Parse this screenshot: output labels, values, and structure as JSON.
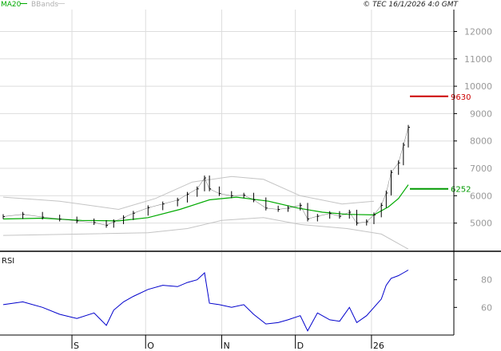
{
  "chart_data": {
    "type": "line",
    "copyright": "© TEC 16/1/2026 4:0 GMT",
    "legend": [
      {
        "name": "MA20",
        "color": "#00aa00"
      },
      {
        "name": "BBands",
        "color": "#bbbbbb"
      }
    ],
    "price_panel": {
      "ylim": [
        4000,
        12800
      ],
      "y_ticks": [
        5000,
        6000,
        7000,
        8000,
        9000,
        10000,
        11000,
        12000
      ],
      "y_tick_labels": [
        "5000",
        "6000",
        "7000",
        "8000",
        "9000",
        "10000",
        "11000",
        "12000"
      ],
      "date_range": [
        "2025-08-04",
        "2026-01-16"
      ],
      "price_series": [
        {
          "date": "2025-08-04",
          "value": 5240
        },
        {
          "date": "2025-08-12",
          "value": 5320
        },
        {
          "date": "2025-08-20",
          "value": 5220
        },
        {
          "date": "2025-08-27",
          "value": 5150
        },
        {
          "date": "2025-09-03",
          "value": 5080
        },
        {
          "date": "2025-09-10",
          "value": 5020
        },
        {
          "date": "2025-09-15",
          "value": 4920
        },
        {
          "date": "2025-09-18",
          "value": 5050
        },
        {
          "date": "2025-09-22",
          "value": 5200
        },
        {
          "date": "2025-09-26",
          "value": 5360
        },
        {
          "date": "2025-10-02",
          "value": 5560
        },
        {
          "date": "2025-10-08",
          "value": 5700
        },
        {
          "date": "2025-10-14",
          "value": 5840
        },
        {
          "date": "2025-10-18",
          "value": 6050
        },
        {
          "date": "2025-10-22",
          "value": 6250
        },
        {
          "date": "2025-10-25",
          "value": 6650
        },
        {
          "date": "2025-10-27",
          "value": 6250
        },
        {
          "date": "2025-10-31",
          "value": 6080
        },
        {
          "date": "2025-11-05",
          "value": 6000
        },
        {
          "date": "2025-11-10",
          "value": 6020
        },
        {
          "date": "2025-11-14",
          "value": 5850
        },
        {
          "date": "2025-11-19",
          "value": 5550
        },
        {
          "date": "2025-11-24",
          "value": 5500
        },
        {
          "date": "2025-11-28",
          "value": 5550
        },
        {
          "date": "2025-12-03",
          "value": 5650
        },
        {
          "date": "2025-12-06",
          "value": 5150
        },
        {
          "date": "2025-12-10",
          "value": 5250
        },
        {
          "date": "2025-12-15",
          "value": 5350
        },
        {
          "date": "2025-12-19",
          "value": 5250
        },
        {
          "date": "2025-12-23",
          "value": 5400
        },
        {
          "date": "2025-12-26",
          "value": 5000
        },
        {
          "date": "2025-12-30",
          "value": 5050
        },
        {
          "date": "2026-01-02",
          "value": 5300
        },
        {
          "date": "2026-01-05",
          "value": 5650
        },
        {
          "date": "2026-01-07",
          "value": 6100
        },
        {
          "date": "2026-01-09",
          "value": 6850
        },
        {
          "date": "2026-01-12",
          "value": 7200
        },
        {
          "date": "2026-01-14",
          "value": 7850
        },
        {
          "date": "2026-01-16",
          "value": 8500
        }
      ],
      "ma20": [
        {
          "date": "2025-08-04",
          "value": 5150
        },
        {
          "date": "2025-08-20",
          "value": 5180
        },
        {
          "date": "2025-09-05",
          "value": 5100
        },
        {
          "date": "2025-09-20",
          "value": 5080
        },
        {
          "date": "2025-10-02",
          "value": 5200
        },
        {
          "date": "2025-10-15",
          "value": 5500
        },
        {
          "date": "2025-10-27",
          "value": 5850
        },
        {
          "date": "2025-11-07",
          "value": 5950
        },
        {
          "date": "2025-11-20",
          "value": 5800
        },
        {
          "date": "2025-12-02",
          "value": 5550
        },
        {
          "date": "2025-12-12",
          "value": 5400
        },
        {
          "date": "2025-12-22",
          "value": 5320
        },
        {
          "date": "2026-01-02",
          "value": 5300
        },
        {
          "date": "2026-01-08",
          "value": 5600
        },
        {
          "date": "2026-01-12",
          "value": 5900
        },
        {
          "date": "2026-01-16",
          "value": 6400
        }
      ],
      "bband_upper": [
        {
          "date": "2025-08-04",
          "value": 5950
        },
        {
          "date": "2025-08-27",
          "value": 5800
        },
        {
          "date": "2025-09-20",
          "value": 5500
        },
        {
          "date": "2025-10-05",
          "value": 5900
        },
        {
          "date": "2025-10-20",
          "value": 6500
        },
        {
          "date": "2025-11-05",
          "value": 6700
        },
        {
          "date": "2025-11-18",
          "value": 6600
        },
        {
          "date": "2025-12-03",
          "value": 6000
        },
        {
          "date": "2025-12-20",
          "value": 5700
        },
        {
          "date": "2026-01-02",
          "value": 5800
        }
      ],
      "bband_lower": [
        {
          "date": "2025-08-04",
          "value": 4550
        },
        {
          "date": "2025-09-05",
          "value": 4600
        },
        {
          "date": "2025-10-02",
          "value": 4650
        },
        {
          "date": "2025-10-18",
          "value": 4800
        },
        {
          "date": "2025-11-01",
          "value": 5100
        },
        {
          "date": "2025-11-18",
          "value": 5200
        },
        {
          "date": "2025-12-03",
          "value": 4950
        },
        {
          "date": "2025-12-22",
          "value": 4800
        },
        {
          "date": "2026-01-05",
          "value": 4600
        },
        {
          "date": "2026-01-16",
          "value": 4050
        }
      ],
      "reference_lines": [
        {
          "label": "9630",
          "value": 9630,
          "color": "#cc0000"
        },
        {
          "label": "6252",
          "value": 6252,
          "color": "#009900"
        }
      ]
    },
    "rsi_panel": {
      "label": "RSI",
      "ylim": [
        40,
        100
      ],
      "y_ticks": [
        60,
        80
      ],
      "y_tick_labels": [
        "60",
        "80"
      ],
      "series": [
        {
          "date": "2025-08-04",
          "value": 62
        },
        {
          "date": "2025-08-12",
          "value": 64
        },
        {
          "date": "2025-08-20",
          "value": 60
        },
        {
          "date": "2025-08-27",
          "value": 55
        },
        {
          "date": "2025-09-03",
          "value": 52
        },
        {
          "date": "2025-09-10",
          "value": 56
        },
        {
          "date": "2025-09-15",
          "value": 47
        },
        {
          "date": "2025-09-18",
          "value": 58
        },
        {
          "date": "2025-09-22",
          "value": 64
        },
        {
          "date": "2025-09-26",
          "value": 68
        },
        {
          "date": "2025-10-02",
          "value": 73
        },
        {
          "date": "2025-10-08",
          "value": 76
        },
        {
          "date": "2025-10-14",
          "value": 75
        },
        {
          "date": "2025-10-18",
          "value": 78
        },
        {
          "date": "2025-10-22",
          "value": 80
        },
        {
          "date": "2025-10-25",
          "value": 85
        },
        {
          "date": "2025-10-27",
          "value": 63
        },
        {
          "date": "2025-10-31",
          "value": 62
        },
        {
          "date": "2025-11-05",
          "value": 60
        },
        {
          "date": "2025-11-10",
          "value": 62
        },
        {
          "date": "2025-11-14",
          "value": 55
        },
        {
          "date": "2025-11-19",
          "value": 48
        },
        {
          "date": "2025-11-24",
          "value": 49
        },
        {
          "date": "2025-11-28",
          "value": 51
        },
        {
          "date": "2025-12-03",
          "value": 54
        },
        {
          "date": "2025-12-06",
          "value": 43
        },
        {
          "date": "2025-12-10",
          "value": 56
        },
        {
          "date": "2025-12-15",
          "value": 51
        },
        {
          "date": "2025-12-19",
          "value": 50
        },
        {
          "date": "2025-12-23",
          "value": 60
        },
        {
          "date": "2025-12-26",
          "value": 49
        },
        {
          "date": "2025-12-30",
          "value": 54
        },
        {
          "date": "2026-01-02",
          "value": 60
        },
        {
          "date": "2026-01-05",
          "value": 66
        },
        {
          "date": "2026-01-07",
          "value": 76
        },
        {
          "date": "2026-01-09",
          "value": 81
        },
        {
          "date": "2026-01-12",
          "value": 83
        },
        {
          "date": "2026-01-14",
          "value": 85
        },
        {
          "date": "2026-01-16",
          "value": 87
        }
      ]
    },
    "x_axis": {
      "ticks": [
        {
          "label": "S",
          "date": "2025-09-01"
        },
        {
          "label": "O",
          "date": "2025-10-01"
        },
        {
          "label": "N",
          "date": "2025-11-01"
        },
        {
          "label": "D",
          "date": "2025-12-01"
        },
        {
          "label": "26",
          "date": "2026-01-01"
        }
      ]
    },
    "grid": true,
    "legend_position": "top-left",
    "colors": {
      "price": "#000000",
      "ma20": "#00aa00",
      "bbands": "#c4c4c4",
      "rsi": "#0000cc",
      "grid": "#dddddd",
      "frame": "#000000"
    }
  }
}
